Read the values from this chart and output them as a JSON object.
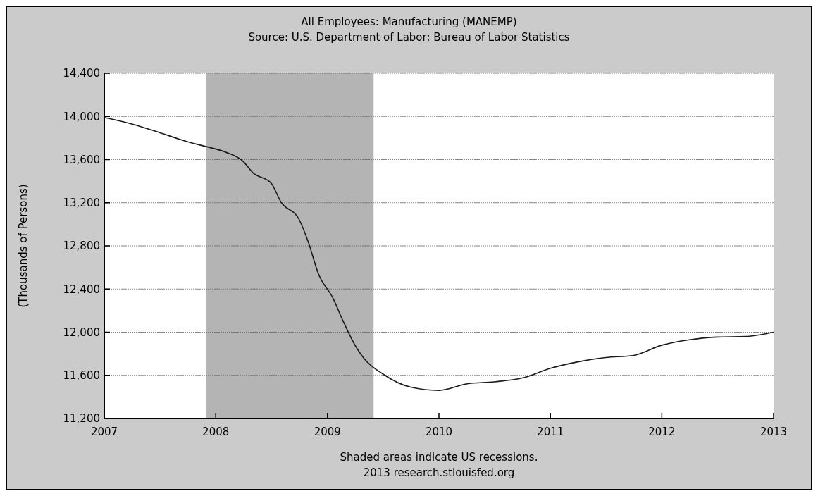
{
  "chart_data": {
    "type": "line",
    "title": "All Employees: Manufacturing (MANEMP)",
    "subtitle": "Source: U.S. Department of Labor: Bureau of Labor Statistics",
    "ylabel": "(Thousands of Persons)",
    "series": [
      {
        "color": "#1a1a1a",
        "x": [
          "2007-01",
          "2007-04",
          "2007-07",
          "2007-10",
          "2007-12",
          "2008-02",
          "2008-04",
          "2008-05",
          "2008-07",
          "2008-08",
          "2008-10",
          "2008-11",
          "2008-12",
          "2009-01-20",
          "2009-02-20",
          "2009-04",
          "2009-05",
          "2009-07",
          "2009-10",
          "2010-01",
          "2010-04",
          "2010-07",
          "2010-10",
          "2011-01",
          "2011-04",
          "2011-07",
          "2011-10",
          "2012-01",
          "2012-04",
          "2012-07",
          "2012-10",
          "2013-01"
        ],
        "values": [
          13990,
          13930,
          13850,
          13765,
          13720,
          13670,
          13580,
          13480,
          13380,
          13210,
          13040,
          12820,
          12550,
          12310,
          12110,
          11880,
          11755,
          11613,
          11490,
          11460,
          11520,
          11540,
          11575,
          11665,
          11725,
          11765,
          11785,
          11880,
          11930,
          11955,
          11960,
          12000
        ]
      }
    ],
    "xlim": [
      "2007",
      "2013"
    ],
    "xticks": [
      {
        "value": "2007",
        "label": "2007"
      },
      {
        "value": "2008",
        "label": "2008"
      },
      {
        "value": "2009",
        "label": "2009"
      },
      {
        "value": "2010",
        "label": "2010"
      },
      {
        "value": "2011",
        "label": "2011"
      },
      {
        "value": "2012",
        "label": "2012"
      },
      {
        "value": "2013",
        "label": "2013"
      }
    ],
    "ylim": [
      11200,
      14400
    ],
    "yticks": [
      {
        "value": 11200,
        "label": "11,200"
      },
      {
        "value": 11600,
        "label": "11,600"
      },
      {
        "value": 12000,
        "label": "12,000"
      },
      {
        "value": 12400,
        "label": "12,400"
      },
      {
        "value": 12800,
        "label": "12,800"
      },
      {
        "value": 13200,
        "label": "13,200"
      },
      {
        "value": 13600,
        "label": "13,600"
      },
      {
        "value": 14000,
        "label": "14,000"
      },
      {
        "value": 14400,
        "label": "14,400"
      }
    ],
    "bands": [
      {
        "axis": "x",
        "from": "2007-12",
        "to": "2009-06",
        "color": "#b4b4b4"
      }
    ],
    "grid": "y",
    "line_style": "solid",
    "marker": "none",
    "annotations": [
      "Shaded areas indicate US recessions.",
      "2013 research.stlouisfed.org"
    ]
  }
}
